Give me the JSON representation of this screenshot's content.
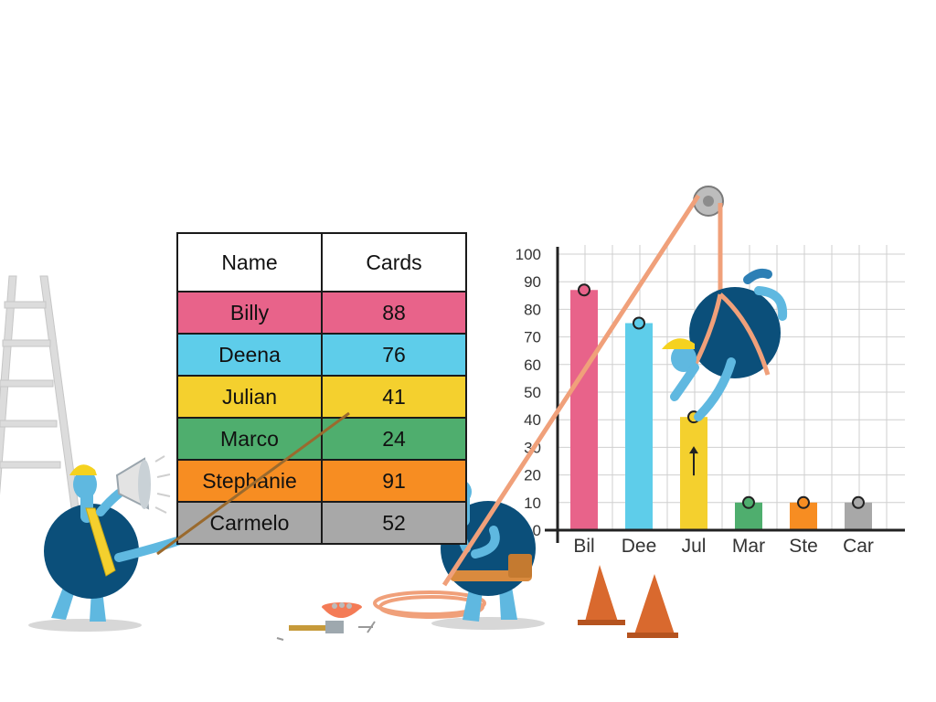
{
  "table": {
    "headers": [
      "Name",
      "Cards"
    ],
    "rows": [
      {
        "name": "Billy",
        "cards": "88",
        "color": "#e8638a"
      },
      {
        "name": "Deena",
        "cards": "76",
        "color": "#5ecdea"
      },
      {
        "name": "Julian",
        "cards": "41",
        "color": "#f4d02e"
      },
      {
        "name": "Marco",
        "cards": "24",
        "color": "#4fae6e"
      },
      {
        "name": "Stephanie",
        "cards": "91",
        "color": "#f78d22"
      },
      {
        "name": "Carmelo",
        "cards": "52",
        "color": "#a8a8a8"
      }
    ]
  },
  "chart_data": {
    "type": "bar",
    "categories": [
      "Bil",
      "Dee",
      "Jul",
      "Mar",
      "Ste",
      "Car"
    ],
    "values": [
      87,
      75,
      41,
      10,
      10,
      10
    ],
    "colors": [
      "#e8638a",
      "#5ecdea",
      "#f4d02e",
      "#4fae6e",
      "#f78d22",
      "#a8a8a8"
    ],
    "y_ticks": [
      "0",
      "10",
      "20",
      "30",
      "40",
      "50",
      "60",
      "70",
      "80",
      "90",
      "100"
    ],
    "ylim": [
      0,
      100
    ],
    "grid": true,
    "active_bar": "Jul"
  },
  "characters": {
    "colors": {
      "body": "#0b4f7a",
      "limb": "#5fb8e0",
      "hat": "#f5d21f",
      "rope": "#f0a07a",
      "cone": "#d9692e",
      "ladder": "#d9d9d9"
    }
  }
}
